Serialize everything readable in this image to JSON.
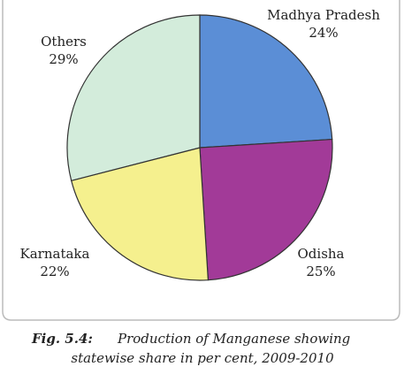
{
  "chart_data": {
    "type": "pie",
    "categories": [
      "Madhya Pradesh",
      "Odisha",
      "Karnataka",
      "Others"
    ],
    "values": [
      24,
      25,
      22,
      29
    ],
    "value_labels": [
      "24%",
      "25%",
      "22%",
      "29%"
    ],
    "colors": [
      "#5b8ed6",
      "#a23a98",
      "#f5f08e",
      "#d3ecdb"
    ],
    "caption_label": "Fig. 5.4:",
    "caption_lines": [
      "Production of Manganese showing",
      "statewise share in per cent, 2009-2010"
    ]
  }
}
